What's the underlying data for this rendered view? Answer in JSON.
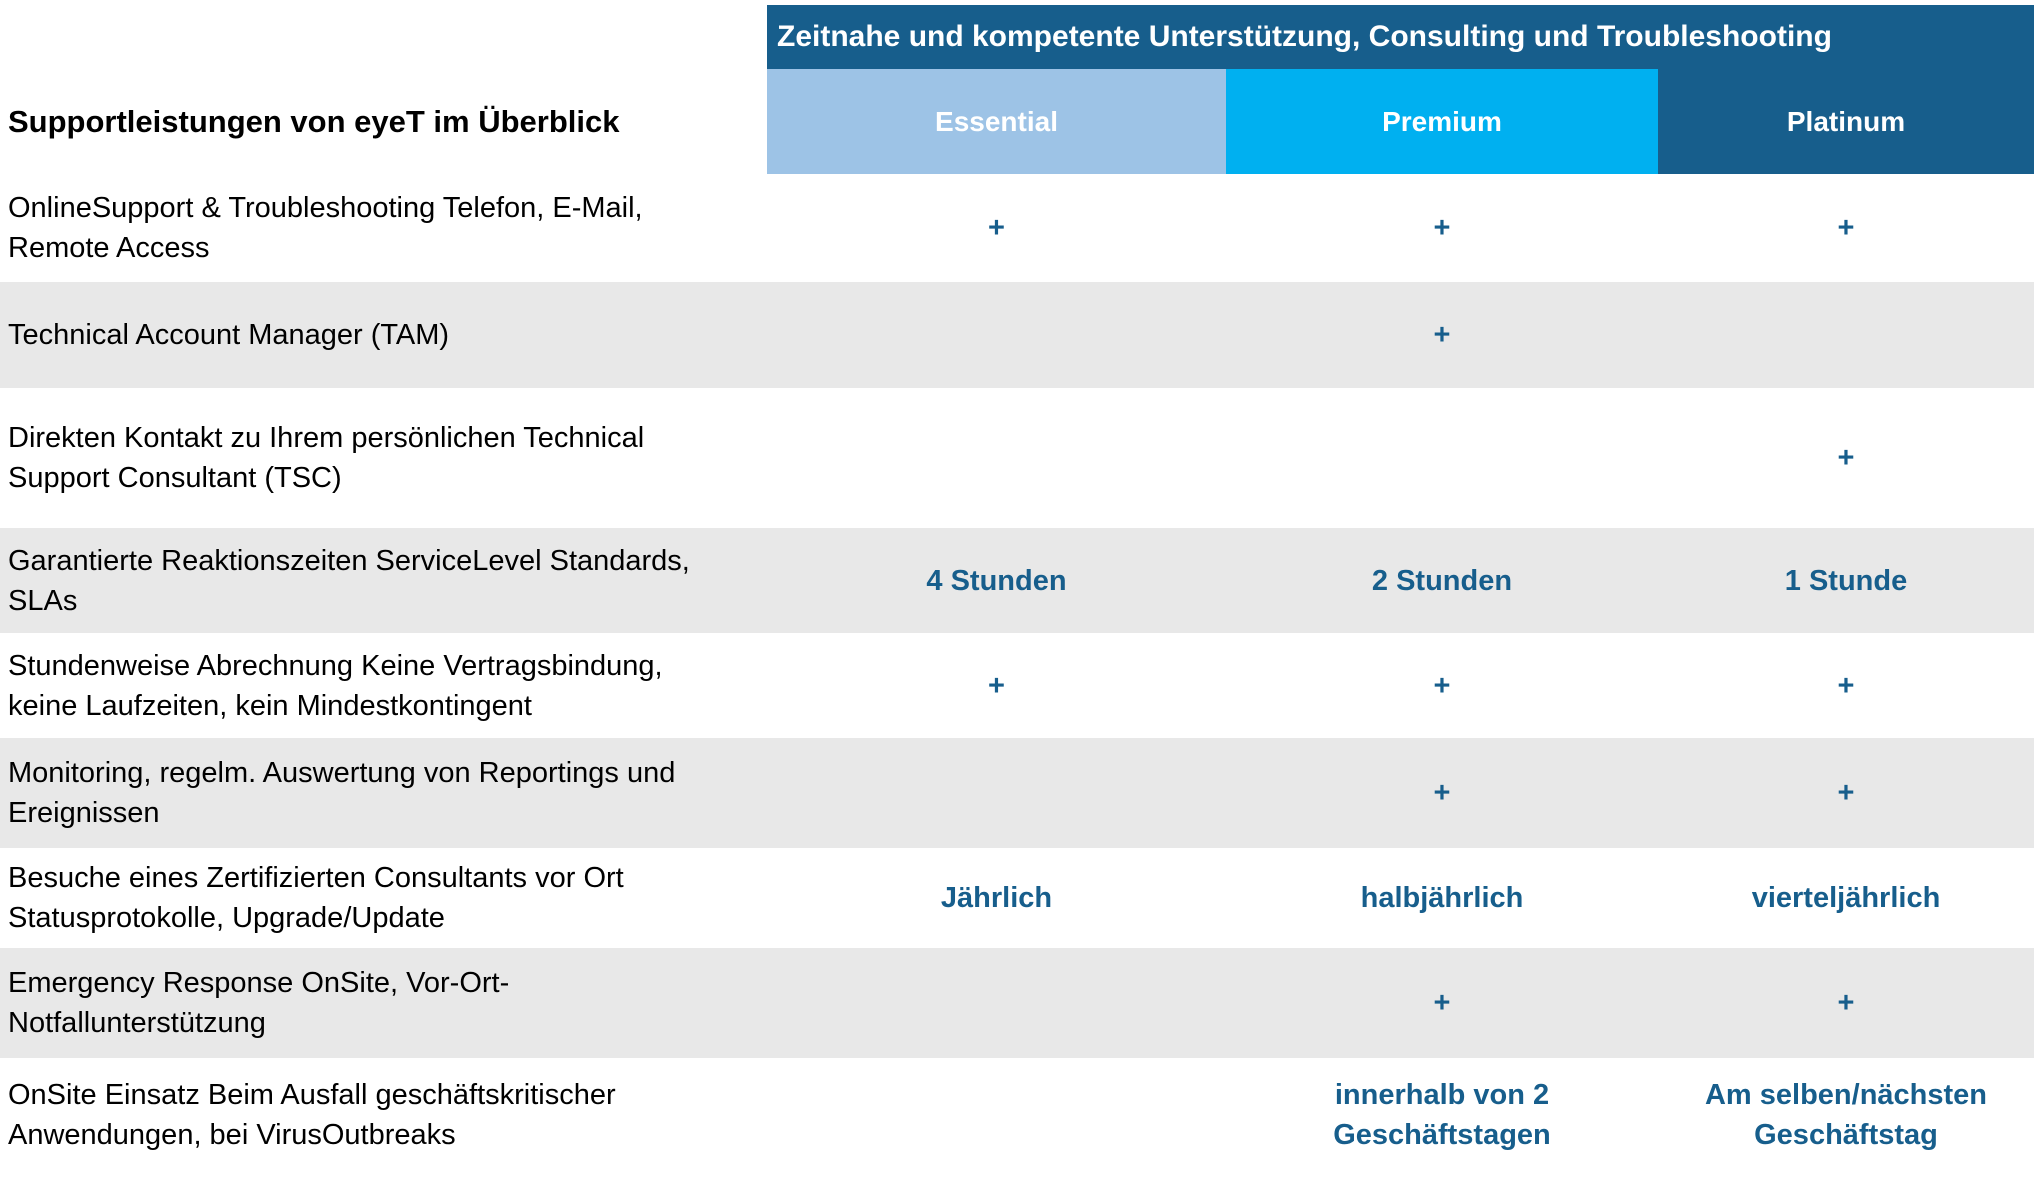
{
  "table": {
    "title": "Supportleistungen von eyeT im Überblick",
    "banner": "Zeitnahe und kompetente Unterstützung, Consulting und Troubleshooting",
    "plans": [
      {
        "label": "Essential"
      },
      {
        "label": "Premium"
      },
      {
        "label": "Platinum"
      }
    ],
    "rows": [
      {
        "feature": "OnlineSupport & Troubleshooting Telefon, E-Mail,\nRemote Access",
        "essential": "+",
        "premium": "+",
        "platinum": "+"
      },
      {
        "feature": "Technical Account Manager (TAM)",
        "essential": "",
        "premium": "+",
        "platinum": ""
      },
      {
        "feature": "Direkten Kontakt zu Ihrem persönlichen Technical\nSupport Consultant (TSC)",
        "essential": "",
        "premium": "",
        "platinum": "+"
      },
      {
        "feature": "Garantierte Reaktionszeiten ServiceLevel Standards,\nSLAs",
        "essential": "4 Stunden",
        "premium": "2 Stunden",
        "platinum": "1 Stunde"
      },
      {
        "feature": "Stundenweise Abrechnung Keine Vertragsbindung,\nkeine Laufzeiten, kein Mindestkontingent",
        "essential": "+",
        "premium": "+",
        "platinum": "+"
      },
      {
        "feature": "Monitoring, regelm. Auswertung von Reportings und\nEreignissen",
        "essential": "",
        "premium": "+",
        "platinum": "+"
      },
      {
        "feature": "Besuche eines Zertifizierten Consultants vor Ort\nStatusprotokolle, Upgrade/Update",
        "essential": "Jährlich",
        "premium": "halbjährlich",
        "platinum": "vierteljährlich"
      },
      {
        "feature": "Emergency Response OnSite, Vor-Ort-\nNotfallunterstützung",
        "essential": "",
        "premium": "+",
        "platinum": "+"
      },
      {
        "feature": "OnSite Einsatz Beim Ausfall geschäftskritischer\nAnwendungen, bei VirusOutbreaks",
        "essential": "",
        "premium": "innerhalb von 2\nGeschäftstagen",
        "platinum": "Am selben/nächsten\nGeschäftstag"
      }
    ],
    "colors": {
      "banner_bg": "#175E8C",
      "essential_bg": "#9DC3E6",
      "premium_bg": "#00B0F0",
      "platinum_bg": "#175E8C",
      "alt_row_bg": "#E8E8E8",
      "value_text": "#175E8C",
      "header_text": "#FFFFFF",
      "feature_text": "#000000"
    }
  }
}
